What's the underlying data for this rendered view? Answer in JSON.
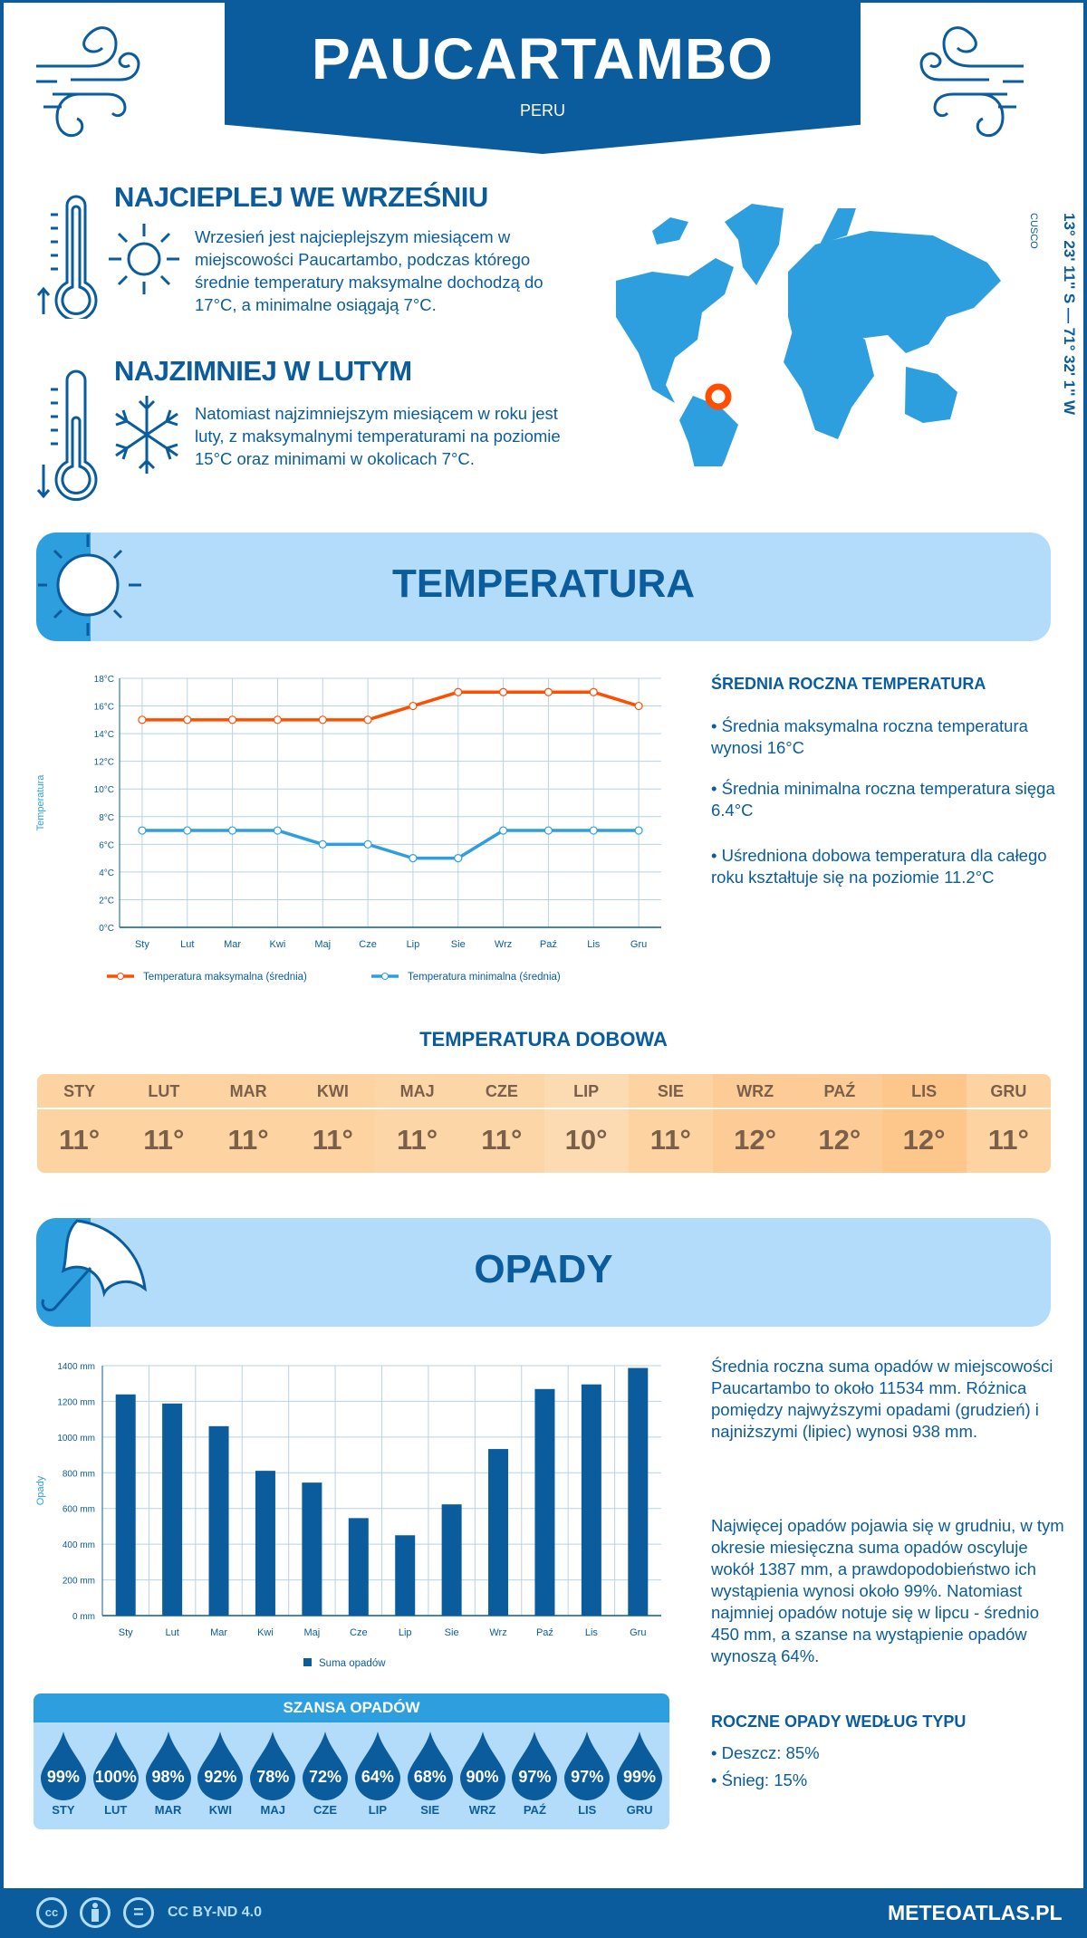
{
  "header": {
    "title": "PAUCARTAMBO",
    "country": "PERU"
  },
  "warmest": {
    "heading": "NAJCIEPLEJ WE WRZEŚNIU",
    "text": "Wrzesień jest najcieplejszym miesiącem w miejscowości Paucartambo, podczas którego średnie temperatury maksymalne dochodzą do 17°C, a minimalne osiągają 7°C."
  },
  "coldest": {
    "heading": "NAJZIMNIEJ W LUTYM",
    "text": "Natomiast najzimniejszym miesiącem w roku jest luty, z maksymalnymi temperaturami na poziomie 15°C oraz minimami w okolicach 7°C."
  },
  "location": {
    "coords": "13° 23' 11'' S — 71° 32' 1'' W",
    "region": "CUSCO"
  },
  "colors": {
    "dark_blue": "#0a5c9c",
    "mid_blue": "#2e9fde",
    "light_blue": "#b3dcfb",
    "max_line": "#ff4e00",
    "marker": "#ff4e00"
  },
  "temperature": {
    "section_title": "TEMPERATURA",
    "side_heading": "ŚREDNIA ROCZNA TEMPERATURA",
    "bullets": [
      "• Średnia maksymalna roczna temperatura wynosi 16°C",
      "• Średnia minimalna roczna temperatura sięga 6.4°C",
      "• Uśredniona dobowa temperatura dla całego roku kształtuje się na poziomie 11.2°C"
    ],
    "daily_heading": "TEMPERATURA DOBOWA",
    "daily": {
      "months": [
        "STY",
        "LUT",
        "MAR",
        "KWI",
        "MAJ",
        "CZE",
        "LIP",
        "SIE",
        "WRZ",
        "PAŹ",
        "LIS",
        "GRU"
      ],
      "values": [
        "11°",
        "11°",
        "11°",
        "11°",
        "11°",
        "11°",
        "10°",
        "11°",
        "12°",
        "12°",
        "12°",
        "11°"
      ],
      "colors": [
        "#fdd3a2",
        "#fdd3a2",
        "#fdd3a2",
        "#fdd3a2",
        "#fdd6a8",
        "#fdd6a8",
        "#fddbb2",
        "#fdd3a2",
        "#fdcc96",
        "#fdcc96",
        "#fdc68b",
        "#fdd3a2"
      ]
    }
  },
  "precipitation": {
    "section_title": "OPADY",
    "text1": "Średnia roczna suma opadów w miejscowości Paucartambo to około 11534 mm. Różnica pomiędzy najwyższymi opadami (grudzień) i najniższymi (lipiec) wynosi 938 mm.",
    "text2": "Najwięcej opadów pojawia się w grudniu, w tym okresie miesięczna suma opadów oscyluje wokół 1387 mm, a prawdopodobieństwo ich wystąpienia wynosi około 99%. Natomiast najmniej opadów notuje się w lipcu - średnio 450 mm, a szanse na wystąpienie opadów wynoszą 64%.",
    "chance": {
      "heading": "SZANSA OPADÓW",
      "months": [
        "STY",
        "LUT",
        "MAR",
        "KWI",
        "MAJ",
        "CZE",
        "LIP",
        "SIE",
        "WRZ",
        "PAŹ",
        "LIS",
        "GRU"
      ],
      "values": [
        "99%",
        "100%",
        "98%",
        "92%",
        "78%",
        "72%",
        "64%",
        "68%",
        "90%",
        "97%",
        "97%",
        "99%"
      ]
    },
    "types": {
      "heading": "ROCZNE OPADY WEDŁUG TYPU",
      "items": [
        "• Deszcz: 85%",
        "• Śnieg: 15%"
      ]
    }
  },
  "chart_data": [
    {
      "type": "line",
      "categories": [
        "Sty",
        "Lut",
        "Mar",
        "Kwi",
        "Maj",
        "Cze",
        "Lip",
        "Sie",
        "Wrz",
        "Paź",
        "Lis",
        "Gru"
      ],
      "series": [
        {
          "name": "Temperatura maksymalna (średnia)",
          "values": [
            15,
            15,
            15,
            15,
            15,
            15,
            16,
            17,
            17,
            17,
            17,
            16
          ],
          "color": "#ff4e00"
        },
        {
          "name": "Temperatura minimalna (średnia)",
          "values": [
            7,
            7,
            7,
            7,
            6,
            6,
            5,
            5,
            7,
            7,
            7,
            7
          ],
          "color": "#2e9fde"
        }
      ],
      "ylabel": "Temperatura",
      "ylim": [
        0,
        18
      ],
      "yticks": [
        "0°C",
        "2°C",
        "4°C",
        "6°C",
        "8°C",
        "10°C",
        "12°C",
        "14°C",
        "16°C",
        "18°C"
      ],
      "grid": true,
      "legend": "bottom"
    },
    {
      "type": "bar",
      "categories": [
        "Sty",
        "Lut",
        "Mar",
        "Kwi",
        "Maj",
        "Cze",
        "Lip",
        "Sie",
        "Wrz",
        "Paź",
        "Lis",
        "Gru"
      ],
      "series": [
        {
          "name": "Suma opadów",
          "values": [
            1239,
            1188,
            1061,
            811,
            745,
            546,
            450,
            623,
            933,
            1269,
            1295,
            1387
          ],
          "color": "#0a5c9c"
        }
      ],
      "ylabel": "Opady",
      "ylim": [
        0,
        1400
      ],
      "yticks": [
        "0 mm",
        "200 mm",
        "400 mm",
        "600 mm",
        "800 mm",
        "1000 mm",
        "1200 mm",
        "1400 mm"
      ],
      "grid": true,
      "legend": "bottom"
    }
  ],
  "footer": {
    "license": "CC BY-ND 4.0",
    "site": "METEOATLAS.PL",
    "cc": "cc",
    "eq": "="
  }
}
